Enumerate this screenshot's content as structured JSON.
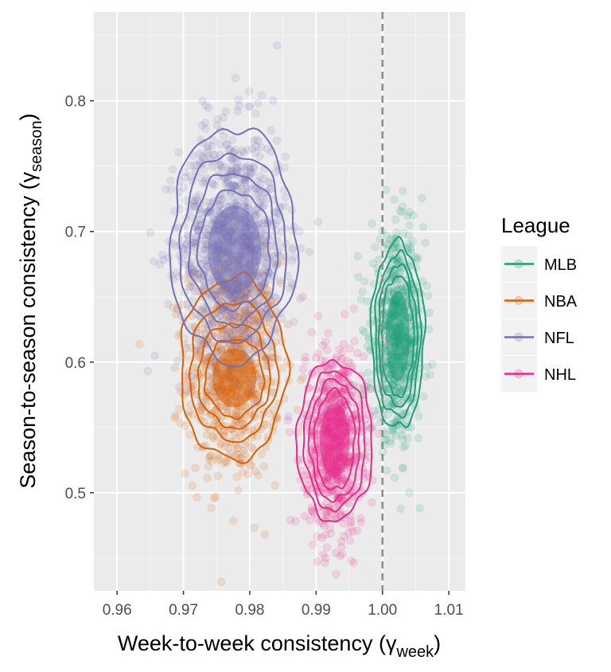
{
  "chart_data": {
    "type": "scatter",
    "xlabel": {
      "main": "Week-to-week consistency (γ",
      "sub": "week",
      "close": ")"
    },
    "ylabel": {
      "main": "Season-to-season consistency (γ",
      "sub": "season",
      "close": ")"
    },
    "xlim": [
      0.9565,
      1.0125
    ],
    "ylim": [
      0.425,
      0.868
    ],
    "x_ticks": [
      0.96,
      0.97,
      0.98,
      0.99,
      1.0,
      1.01
    ],
    "x_tick_labels": [
      "0.96",
      "0.97",
      "0.98",
      "0.99",
      "1.00",
      "1.01"
    ],
    "y_ticks": [
      0.5,
      0.6,
      0.7,
      0.8
    ],
    "y_tick_labels": [
      "0.5",
      "0.6",
      "0.7",
      "0.8"
    ],
    "grid": true,
    "reference_line": {
      "x": 1.0,
      "style": "dashed",
      "color": "#8c8c8c"
    },
    "legend": {
      "title": "League",
      "placement": "right"
    },
    "series": [
      {
        "name": "MLB",
        "color": "#1b9e77",
        "center": [
          1.0023,
          0.618
        ],
        "spread": [
          0.002,
          0.038
        ],
        "n": 650,
        "contours": [
          [
            1.0023,
            0.62,
            0.004,
            0.071
          ],
          [
            1.0023,
            0.62,
            0.0034,
            0.062
          ],
          [
            1.0023,
            0.62,
            0.0029,
            0.054
          ],
          [
            1.0023,
            0.62,
            0.0024,
            0.046
          ]
        ]
      },
      {
        "name": "NBA",
        "color": "#d95f02",
        "center": [
          0.9775,
          0.594
        ],
        "spread": [
          0.0035,
          0.042
        ],
        "n": 750,
        "contours": [
          [
            0.9775,
            0.595,
            0.008,
            0.07
          ],
          [
            0.9775,
            0.593,
            0.0066,
            0.053
          ],
          [
            0.9776,
            0.59,
            0.0054,
            0.04
          ],
          [
            0.9777,
            0.588,
            0.0044,
            0.03
          ]
        ]
      },
      {
        "name": "NFL",
        "color": "#7570b3",
        "center": [
          0.9775,
          0.688
        ],
        "spread": [
          0.004,
          0.045
        ],
        "n": 1100,
        "contours": [
          [
            0.9775,
            0.69,
            0.0095,
            0.09
          ],
          [
            0.9775,
            0.688,
            0.008,
            0.072
          ],
          [
            0.9776,
            0.687,
            0.0066,
            0.058
          ],
          [
            0.9777,
            0.686,
            0.0054,
            0.045
          ]
        ]
      },
      {
        "name": "NHL",
        "color": "#e7298a",
        "center": [
          0.9928,
          0.539
        ],
        "spread": [
          0.0022,
          0.035
        ],
        "n": 750,
        "contours": [
          [
            0.9928,
            0.54,
            0.0057,
            0.061
          ],
          [
            0.9928,
            0.54,
            0.0046,
            0.053
          ],
          [
            0.9928,
            0.54,
            0.0038,
            0.046
          ],
          [
            0.9928,
            0.54,
            0.003,
            0.038
          ]
        ]
      }
    ]
  }
}
